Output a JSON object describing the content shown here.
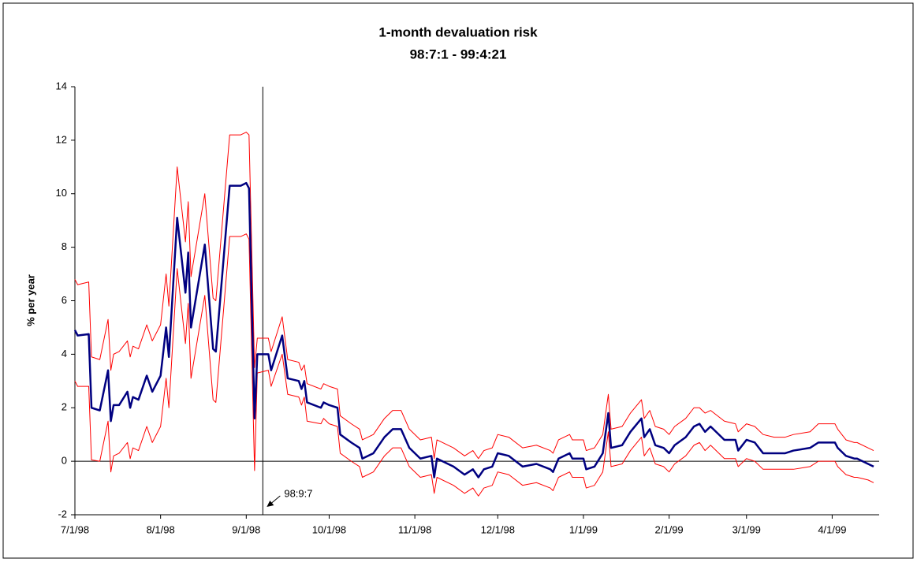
{
  "chart_data": {
    "type": "line",
    "title": "1-month devaluation risk",
    "subtitle": "98:7:1 - 99:4:21",
    "y_label": "% per year",
    "x": [
      "7/1/98",
      "7/2/98",
      "7/6/98",
      "7/7/98",
      "7/10/98",
      "7/13/98",
      "7/14/98",
      "7/15/98",
      "7/17/98",
      "7/20/98",
      "7/21/98",
      "7/22/98",
      "7/24/98",
      "7/27/98",
      "7/29/98",
      "8/1/98",
      "8/3/98",
      "8/4/98",
      "8/7/98",
      "8/10/98",
      "8/11/98",
      "8/12/98",
      "8/17/98",
      "8/20/98",
      "8/21/98",
      "8/26/98",
      "8/30/98",
      "9/1/98",
      "9/2/98",
      "9/4/98",
      "9/5/98",
      "9/9/98",
      "9/10/98",
      "9/14/98",
      "9/16/98",
      "9/20/98",
      "9/21/98",
      "9/22/98",
      "9/23/98",
      "9/28/98",
      "9/29/98",
      "10/1/98",
      "10/4/98",
      "10/5/98",
      "10/9/98",
      "10/12/98",
      "10/13/98",
      "10/17/98",
      "10/21/98",
      "10/24/98",
      "10/27/98",
      "10/30/98",
      "11/3/98",
      "11/7/98",
      "11/8/98",
      "11/9/98",
      "11/15/98",
      "11/19/98",
      "11/22/98",
      "11/24/98",
      "11/26/98",
      "11/29/98",
      "12/1/98",
      "12/5/98",
      "12/10/98",
      "12/15/98",
      "12/20/98",
      "12/21/98",
      "12/23/98",
      "12/27/98",
      "12/28/98",
      "1/1/99",
      "1/2/99",
      "1/5/99",
      "1/8/99",
      "1/10/99",
      "1/11/99",
      "1/15/99",
      "1/18/99",
      "1/22/99",
      "1/23/99",
      "1/25/99",
      "1/27/99",
      "1/30/99",
      "2/1/99",
      "2/3/99",
      "2/7/99",
      "2/10/99",
      "2/12/99",
      "2/14/99",
      "2/16/99",
      "2/21/99",
      "2/25/99",
      "2/26/99",
      "3/1/99",
      "3/4/99",
      "3/7/99",
      "3/11/99",
      "3/15/99",
      "3/18/99",
      "3/24/99",
      "3/27/99",
      "4/2/99",
      "4/3/99",
      "4/6/99",
      "4/9/99",
      "4/10/99",
      "4/14/99",
      "4/16/99"
    ],
    "series": [
      {
        "color": "#000080",
        "width": 2.5,
        "values": [
          4.9,
          4.7,
          4.75,
          2.0,
          1.9,
          3.4,
          1.5,
          2.1,
          2.1,
          2.6,
          2.0,
          2.4,
          2.3,
          3.2,
          2.6,
          3.2,
          5.0,
          3.9,
          9.1,
          6.3,
          7.8,
          5.0,
          8.1,
          4.2,
          4.1,
          10.3,
          10.3,
          10.4,
          10.2,
          1.6,
          4.0,
          4.0,
          3.4,
          4.7,
          3.1,
          3.0,
          2.7,
          3.0,
          2.2,
          2.0,
          2.2,
          2.1,
          2.0,
          1.0,
          0.7,
          0.5,
          0.1,
          0.3,
          0.9,
          1.2,
          1.2,
          0.5,
          0.1,
          0.2,
          -0.6,
          0.1,
          -0.2,
          -0.5,
          -0.3,
          -0.6,
          -0.3,
          -0.2,
          0.3,
          0.2,
          -0.2,
          -0.1,
          -0.3,
          -0.4,
          0.1,
          0.3,
          0.1,
          0.1,
          -0.3,
          -0.2,
          0.3,
          1.8,
          0.5,
          0.6,
          1.1,
          1.6,
          0.9,
          1.2,
          0.6,
          0.5,
          0.3,
          0.6,
          0.9,
          1.3,
          1.4,
          1.1,
          1.3,
          0.8,
          0.8,
          0.4,
          0.8,
          0.7,
          0.3,
          0.3,
          0.3,
          0.4,
          0.5,
          0.7,
          0.7,
          0.5,
          0.2,
          0.1,
          0.1,
          -0.1,
          -0.2
        ]
      },
      {
        "color": "#ff0000",
        "width": 1,
        "values": [
          6.8,
          6.6,
          6.7,
          3.9,
          3.8,
          5.3,
          3.4,
          4.0,
          4.1,
          4.5,
          3.9,
          4.3,
          4.2,
          5.1,
          4.5,
          5.1,
          7.0,
          5.8,
          11.0,
          8.2,
          9.7,
          6.9,
          10.0,
          6.1,
          6.0,
          12.2,
          12.2,
          12.3,
          12.2,
          3.5,
          4.6,
          4.6,
          4.1,
          5.4,
          3.8,
          3.7,
          3.4,
          3.6,
          2.9,
          2.7,
          2.9,
          2.8,
          2.7,
          1.7,
          1.4,
          1.2,
          0.8,
          1.0,
          1.6,
          1.9,
          1.9,
          1.2,
          0.8,
          0.9,
          0.1,
          0.8,
          0.5,
          0.2,
          0.4,
          0.1,
          0.4,
          0.5,
          1.0,
          0.9,
          0.5,
          0.6,
          0.4,
          0.3,
          0.8,
          1.0,
          0.8,
          0.8,
          0.4,
          0.5,
          1.0,
          2.5,
          1.2,
          1.3,
          1.8,
          2.3,
          1.6,
          1.9,
          1.3,
          1.2,
          1.0,
          1.3,
          1.6,
          2.0,
          2.0,
          1.8,
          1.9,
          1.5,
          1.4,
          1.1,
          1.4,
          1.3,
          1.0,
          0.9,
          0.9,
          1.0,
          1.1,
          1.4,
          1.4,
          1.2,
          0.8,
          0.7,
          0.7,
          0.5,
          0.4
        ]
      },
      {
        "color": "#ff0000",
        "width": 1,
        "values": [
          3.0,
          2.8,
          2.8,
          0.05,
          0.0,
          1.5,
          -0.4,
          0.2,
          0.3,
          0.7,
          0.1,
          0.5,
          0.4,
          1.3,
          0.7,
          1.3,
          3.1,
          2.0,
          7.2,
          4.4,
          5.9,
          3.1,
          6.2,
          2.3,
          2.2,
          8.4,
          8.4,
          8.5,
          8.3,
          -0.35,
          3.3,
          3.4,
          2.8,
          4.0,
          2.5,
          2.4,
          2.1,
          2.4,
          1.5,
          1.4,
          1.6,
          1.4,
          1.3,
          0.3,
          0.0,
          -0.2,
          -0.6,
          -0.4,
          0.2,
          0.5,
          0.5,
          -0.2,
          -0.6,
          -0.5,
          -1.2,
          -0.6,
          -0.9,
          -1.2,
          -1.0,
          -1.3,
          -1.0,
          -0.9,
          -0.4,
          -0.5,
          -0.9,
          -0.8,
          -1.0,
          -1.1,
          -0.6,
          -0.4,
          -0.6,
          -0.6,
          -1.0,
          -0.9,
          -0.4,
          1.1,
          -0.2,
          -0.1,
          0.4,
          0.9,
          0.2,
          0.5,
          -0.1,
          -0.2,
          -0.4,
          -0.1,
          0.2,
          0.6,
          0.7,
          0.4,
          0.6,
          0.1,
          0.1,
          -0.2,
          0.1,
          0.0,
          -0.3,
          -0.3,
          -0.3,
          -0.3,
          -0.2,
          0.0,
          0.0,
          -0.2,
          -0.5,
          -0.6,
          -0.6,
          -0.7,
          -0.8
        ]
      }
    ],
    "xlim": [
      "7/1/98",
      "4/18/99"
    ],
    "xticks": [
      "7/1/98",
      "8/1/98",
      "9/1/98",
      "10/1/98",
      "11/1/98",
      "12/1/98",
      "1/1/99",
      "2/1/99",
      "3/1/99",
      "4/1/99"
    ],
    "ylim": [
      -2,
      14
    ],
    "yticks": [
      -2,
      0,
      2,
      4,
      6,
      8,
      10,
      12,
      14
    ],
    "annotations": [
      {
        "text": "98:9:7",
        "x": "9/7/98"
      }
    ]
  }
}
